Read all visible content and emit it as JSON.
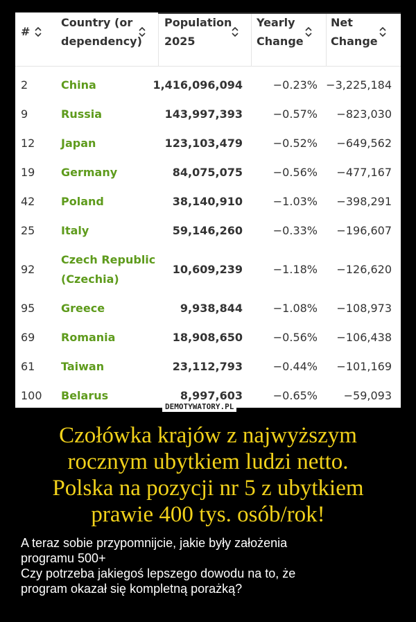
{
  "table": {
    "headers": [
      [
        "#"
      ],
      [
        "Country (or",
        "dependency)"
      ],
      [
        "Population",
        "2025"
      ],
      [
        "Yearly",
        "Change"
      ],
      [
        "Net",
        "Change"
      ]
    ],
    "rows": [
      [
        "2",
        "China",
        "1,416,096,094",
        "−0.23%",
        "−3,225,184"
      ],
      [
        "9",
        "Russia",
        "143,997,393",
        "−0.57%",
        "−823,030"
      ],
      [
        "12",
        "Japan",
        "123,103,479",
        "−0.52%",
        "−649,562"
      ],
      [
        "19",
        "Germany",
        "84,075,075",
        "−0.56%",
        "−477,167"
      ],
      [
        "42",
        "Poland",
        "38,140,910",
        "−1.03%",
        "−398,291"
      ],
      [
        "25",
        "Italy",
        "59,146,260",
        "−0.33%",
        "−196,607"
      ],
      [
        "92",
        "Czech Republic (Czechia)",
        "10,609,239",
        "−1.18%",
        "−126,620"
      ],
      [
        "95",
        "Greece",
        "9,938,844",
        "−1.08%",
        "−108,973"
      ],
      [
        "69",
        "Romania",
        "18,908,650",
        "−0.56%",
        "−106,438"
      ],
      [
        "61",
        "Taiwan",
        "23,112,793",
        "−0.44%",
        "−101,169"
      ],
      [
        "100",
        "Belarus",
        "8,997,603",
        "−0.65%",
        "−59,093"
      ]
    ]
  },
  "watermark": "DEMOTYWATORY.PL",
  "title_lines": [
    "Czołówka krajów z najwyższym",
    "rocznym ubytkiem ludzi netto.",
    "Polska na pozycji nr 5 z ubytkiem",
    "prawie 400 tys. osób/rok!"
  ],
  "body_lines": [
    "A teraz sobie przypomnijcie, jakie były założenia",
    "programu 500+",
    "Czy potrzeba jakiegoś lepszego dowodu na to, że",
    "program okazał się kompletną porażką?"
  ]
}
